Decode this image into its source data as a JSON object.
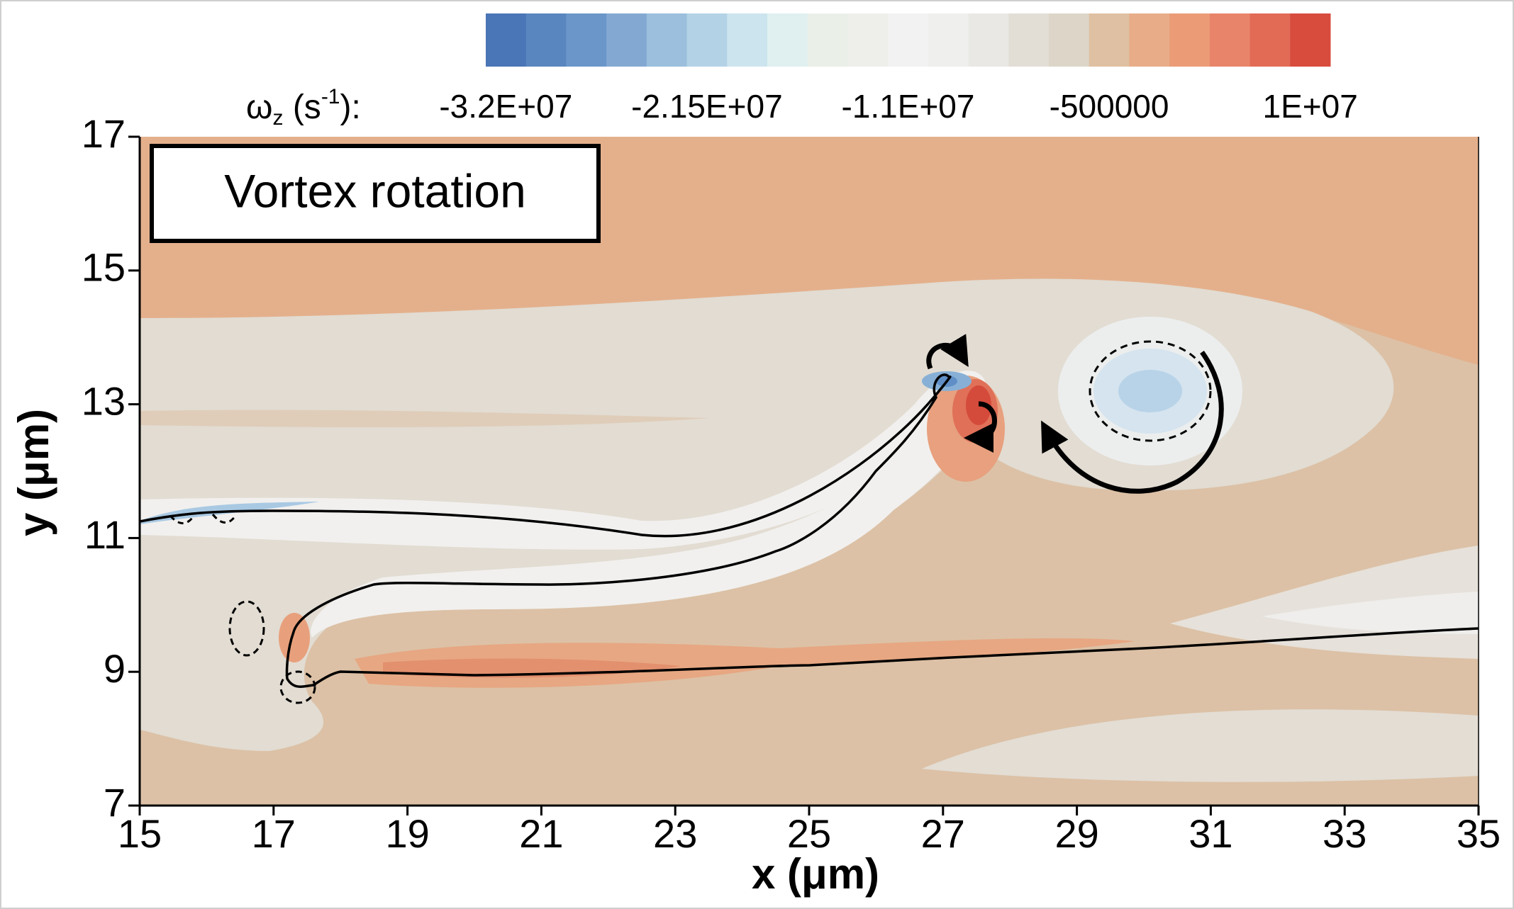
{
  "chart_data": {
    "type": "contour",
    "annotation": "Vortex rotation",
    "x_label": "x (μm)",
    "y_label": "y (μm)",
    "xlim": [
      15,
      35
    ],
    "xticks": [
      15,
      17,
      19,
      21,
      23,
      25,
      27,
      29,
      31,
      33,
      35
    ],
    "ylim": [
      7,
      17
    ],
    "yticks": [
      7,
      9,
      11,
      13,
      15,
      17
    ],
    "colorbar": {
      "label_parts": [
        "ω",
        "z",
        " (s",
        "-1",
        "):"
      ],
      "lim": [
        -33050000,
        11050000
      ],
      "ticks": [
        {
          "value": -32000000,
          "label": "-3.2E+07"
        },
        {
          "value": -21500000,
          "label": "-2.15E+07"
        },
        {
          "value": -11000000,
          "label": "-1.1E+07"
        },
        -500000,
        {
          "value": 10000000,
          "label": "1E+07"
        }
      ],
      "colors": [
        "#4a75b6",
        "#5a86c0",
        "#6b96c9",
        "#83a9d2",
        "#9bbfdc",
        "#b3d2e6",
        "#cce4ee",
        "#e0f0f0",
        "#eaf0e8",
        "#eeeeea",
        "#f2f2f2",
        "#efefee",
        "#e9e8e4",
        "#e2ded6",
        "#ddd5c7",
        "#dfc0a2",
        "#e8ad88",
        "#eb9c77",
        "#e8846a",
        "#e26b56",
        "#d84c3e"
      ]
    }
  }
}
